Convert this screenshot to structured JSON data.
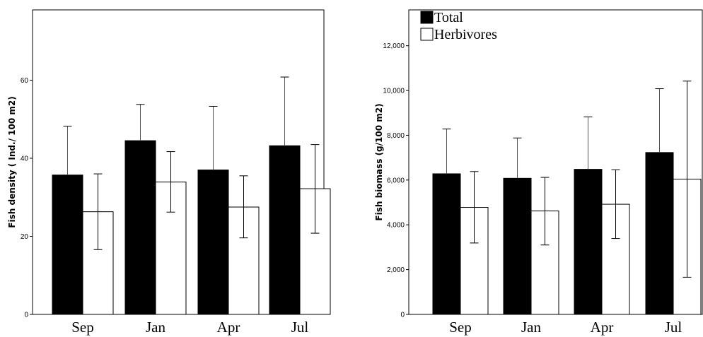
{
  "chart_data": [
    {
      "type": "bar",
      "categories": [
        "Sep",
        "Jan",
        "Apr",
        "Jul"
      ],
      "ylabel": "Fish density ( Ind./ 100 m2)",
      "ylim": [
        0,
        78
      ],
      "yticks": [
        "0",
        "20",
        "40",
        "60"
      ],
      "ytick_values": [
        0,
        20,
        40,
        60
      ],
      "series": [
        {
          "name": "Total",
          "color": "#000000",
          "values": [
            35.7,
            44.5,
            37.0,
            43.2
          ],
          "error_upper": [
            48.2,
            53.8,
            53.3,
            60.8
          ]
        },
        {
          "name": "Herbivores",
          "color": "#ffffff",
          "values": [
            26.3,
            33.9,
            27.5,
            32.2
          ],
          "error_upper": [
            36.0,
            41.7,
            35.5,
            43.5
          ],
          "error_lower": [
            16.6,
            26.2,
            19.6,
            20.8
          ]
        }
      ],
      "legend": "none"
    },
    {
      "type": "bar",
      "categories": [
        "Sep",
        "Jan",
        "Apr",
        "Jul"
      ],
      "ylabel": "Fish biomass (g/100 m2)",
      "ylim": [
        0,
        13600
      ],
      "yticks": [
        "0",
        "2,000",
        "4,000",
        "6,000",
        "8,000",
        "10,000",
        "12,000"
      ],
      "ytick_values": [
        0,
        2000,
        4000,
        6000,
        8000,
        10000,
        12000
      ],
      "series": [
        {
          "name": "Total",
          "color": "#000000",
          "values": [
            6280,
            6080,
            6480,
            7230
          ],
          "error_upper": [
            8280,
            7880,
            8820,
            10080
          ]
        },
        {
          "name": "Herbivores",
          "color": "#ffffff",
          "values": [
            4780,
            4620,
            4920,
            6040
          ],
          "error_upper": [
            6380,
            6120,
            6460,
            10420
          ],
          "error_lower": [
            3190,
            3100,
            3390,
            1660
          ]
        }
      ],
      "legend": "top-left"
    }
  ]
}
